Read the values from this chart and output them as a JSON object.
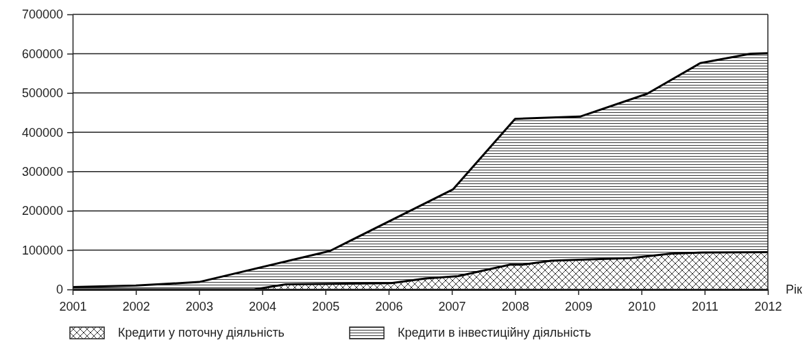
{
  "chart_data": {
    "type": "area",
    "xlabel": "Рік",
    "xlim": [
      2001,
      2012
    ],
    "xticks": [
      2001,
      2002,
      2003,
      2004,
      2005,
      2006,
      2007,
      2008,
      2009,
      2010,
      2011,
      2012
    ],
    "ylim": [
      0,
      700000
    ],
    "yticks": [
      0,
      100000,
      200000,
      300000,
      400000,
      500000,
      600000,
      700000
    ],
    "grid": "y",
    "legend": "bottom",
    "series": [
      {
        "name": "Кредити в інвестиційну діяльність",
        "color": "#000000",
        "x": [
          2001,
          2002,
          2003,
          2005.07,
          2007.02,
          2008,
          2009.03,
          2010.09,
          2010.93,
          2011.73,
          2012
        ],
        "values": [
          6000,
          10000,
          19000,
          98000,
          255000,
          434000,
          440000,
          498000,
          576000,
          600000,
          601000
        ]
      },
      {
        "name": "Кредити у поточну діяльність",
        "color": "#000000",
        "x": [
          2001,
          2003.87,
          2004.37,
          2006.04,
          2006.58,
          2007.1,
          2007.92,
          2008.12,
          2008.57,
          2009.85,
          2010.45,
          2010.97,
          2012
        ],
        "values": [
          0,
          0,
          13000,
          16000,
          28000,
          34000,
          63000,
          63000,
          73000,
          80000,
          91000,
          94000,
          95000
        ]
      }
    ]
  }
}
